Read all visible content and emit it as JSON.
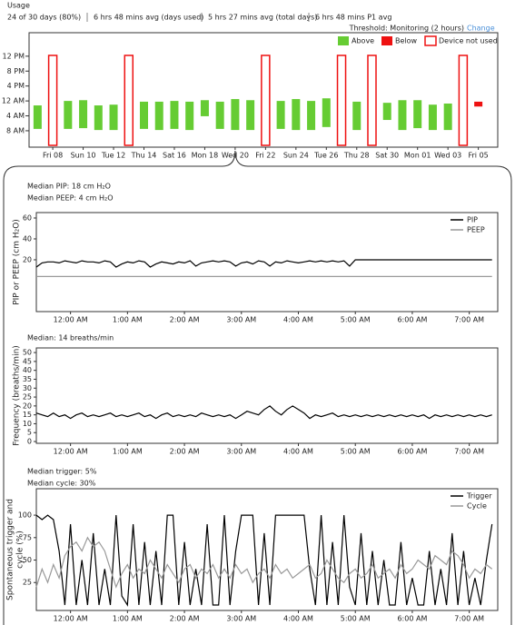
{
  "header": {
    "title": "Usage",
    "summary": [
      "24 of 30 days (80%)",
      "6 hrs 48 mins avg (days used)",
      "5 hrs 27 mins avg (total days)",
      "6 hrs 48 mins P1 avg"
    ],
    "threshold": "Threshold: Monitoring (2 hours)",
    "threshold_link": "Change"
  },
  "chart_data": [
    {
      "type": "range_bar",
      "categories": [
        null,
        "Fri 08",
        null,
        "Sun 10",
        null,
        "Tue 12",
        null,
        "Thu 14",
        null,
        "Sat 16",
        null,
        "Mon 18",
        null,
        "Wed 20",
        null,
        "Fri 22",
        null,
        "Sun 24",
        null,
        "Tue 26",
        null,
        "Thu 28",
        null,
        "Sat 30",
        null,
        "Mon 01",
        null,
        "Wed 03",
        null,
        "Fri 05"
      ],
      "start": [
        0.5,
        null,
        0.5,
        0.7,
        0.2,
        0.2,
        null,
        0.5,
        0.2,
        0.5,
        0.2,
        3.9,
        0.5,
        0.2,
        0.2,
        null,
        0.5,
        0.2,
        0.2,
        1.0,
        null,
        0.2,
        null,
        2.9,
        0.2,
        0.7,
        0.2,
        0.2,
        null,
        6.5
      ],
      "end": [
        6.8,
        null,
        8.0,
        8.2,
        6.8,
        7.0,
        null,
        7.8,
        7.8,
        8.0,
        7.8,
        8.2,
        7.8,
        8.5,
        8.2,
        null,
        8.0,
        8.5,
        8.0,
        8.7,
        null,
        7.8,
        null,
        7.5,
        8.2,
        8.2,
        7.0,
        7.3,
        null,
        7.8
      ],
      "status": [
        0,
        2,
        0,
        0,
        0,
        0,
        2,
        0,
        0,
        0,
        0,
        0,
        0,
        0,
        0,
        2,
        0,
        0,
        0,
        0,
        2,
        0,
        2,
        0,
        0,
        0,
        0,
        0,
        2,
        1
      ],
      "legend": [
        {
          "name": "Above",
          "color": "#66cc33",
          "style": "fill"
        },
        {
          "name": "Below",
          "color": "#ee1111",
          "style": "fill"
        },
        {
          "name": "Device not used",
          "color": "#ee1111",
          "style": "outline"
        }
      ],
      "selected": 13,
      "ylim": [
        -4.4,
        26.3
      ],
      "yticks": [
        {
          "value": 0,
          "label": "8 AM"
        },
        {
          "value": 4,
          "label": "4 AM"
        },
        {
          "value": 8,
          "label": "12 AM"
        },
        {
          "value": 12,
          "label": "4 PM"
        },
        {
          "value": 16,
          "label": "8 PM"
        },
        {
          "value": 20,
          "label": "12 PM"
        }
      ]
    },
    {
      "type": "line",
      "notes": [
        "Median PIP: 18 cm H₂O",
        "Median PEEP: 4 cm H₂O"
      ],
      "ylabel": "PIP or PEEP (cm H₂O)",
      "legend": "upper right",
      "x": [
        -0.6,
        -0.5,
        -0.4,
        -0.3,
        -0.2,
        -0.1,
        0.0,
        0.1,
        0.2,
        0.3,
        0.4,
        0.5,
        0.6,
        0.7,
        0.8,
        0.9,
        1.0,
        1.1,
        1.2,
        1.3,
        1.4,
        1.5,
        1.6,
        1.7,
        1.8,
        1.9,
        2.0,
        2.1,
        2.2,
        2.3,
        2.4,
        2.5,
        2.6,
        2.7,
        2.8,
        2.9,
        3.0,
        3.1,
        3.2,
        3.3,
        3.4,
        3.5,
        3.6,
        3.7,
        3.8,
        3.9,
        4.0,
        4.1,
        4.2,
        4.3,
        4.4,
        4.5,
        4.6,
        4.7,
        4.8,
        4.9,
        5.0,
        5.1,
        5.2,
        5.3,
        5.4,
        5.5,
        5.6,
        5.7,
        5.8,
        5.9,
        6.0,
        6.1,
        6.2,
        6.3,
        6.4,
        6.5,
        6.6,
        6.7,
        6.8,
        6.9,
        7.0,
        7.1,
        7.2,
        7.3,
        7.4
      ],
      "series": [
        {
          "name": "PIP",
          "color": "#000000",
          "values": [
            13,
            17,
            18,
            18,
            17,
            19,
            18,
            17,
            19,
            18,
            18,
            17,
            19,
            18,
            13,
            16,
            18,
            17,
            19,
            18,
            13,
            16,
            18,
            17,
            16,
            18,
            17,
            19,
            14,
            17,
            18,
            19,
            18,
            19,
            18,
            14,
            17,
            18,
            16,
            19,
            18,
            14,
            18,
            17,
            19,
            18,
            17,
            18,
            19,
            18,
            19,
            18,
            19,
            18,
            19,
            14,
            20,
            20,
            20,
            20,
            20,
            20,
            20,
            20,
            20,
            20,
            20,
            20,
            20,
            20,
            20,
            20,
            20,
            20,
            20,
            20,
            20,
            20,
            20,
            20,
            20
          ]
        },
        {
          "name": "PEEP",
          "color": "#999999",
          "values": [
            4,
            4,
            4,
            4,
            4,
            4,
            4,
            4,
            4,
            4,
            4,
            4,
            4,
            4,
            4,
            4,
            4,
            4,
            4,
            4,
            4,
            4,
            4,
            4,
            4,
            4,
            4,
            4,
            4,
            4,
            4,
            4,
            4,
            4,
            4,
            4,
            4,
            4,
            4,
            4,
            4,
            4,
            4,
            4,
            4,
            4,
            4,
            4,
            4,
            4,
            4,
            4,
            4,
            4,
            4,
            4,
            4,
            4,
            4,
            4,
            4,
            4,
            4,
            4,
            4,
            4,
            4,
            4,
            4,
            4,
            4,
            4,
            4,
            4,
            4,
            4,
            4,
            4,
            4,
            4,
            4
          ]
        }
      ],
      "xlim": [
        -0.6,
        7.5
      ],
      "xticks": [
        {
          "value": 0,
          "label": "12:00 AM"
        },
        {
          "value": 1,
          "label": "1:00 AM"
        },
        {
          "value": 2,
          "label": "2:00 AM"
        },
        {
          "value": 3,
          "label": "3:00 AM"
        },
        {
          "value": 4,
          "label": "4:00 AM"
        },
        {
          "value": 5,
          "label": "5:00 AM"
        },
        {
          "value": 6,
          "label": "6:00 AM"
        },
        {
          "value": 7,
          "label": "7:00 AM"
        }
      ],
      "ylim": [
        -29.6,
        65.2
      ],
      "yticks": [
        20,
        40,
        60
      ]
    },
    {
      "type": "line",
      "notes": [
        "Median: 14 breaths/min"
      ],
      "ylabel": "Frequency (breaths/min)",
      "color": "#000000",
      "x": [
        -0.6,
        -0.5,
        -0.4,
        -0.3,
        -0.2,
        -0.1,
        0.0,
        0.1,
        0.2,
        0.3,
        0.4,
        0.5,
        0.6,
        0.7,
        0.8,
        0.9,
        1.0,
        1.1,
        1.2,
        1.3,
        1.4,
        1.5,
        1.6,
        1.7,
        1.8,
        1.9,
        2.0,
        2.1,
        2.2,
        2.3,
        2.4,
        2.5,
        2.6,
        2.7,
        2.8,
        2.9,
        3.0,
        3.1,
        3.2,
        3.3,
        3.4,
        3.5,
        3.6,
        3.7,
        3.8,
        3.9,
        4.0,
        4.1,
        4.2,
        4.3,
        4.4,
        4.5,
        4.6,
        4.7,
        4.8,
        4.9,
        5.0,
        5.1,
        5.2,
        5.3,
        5.4,
        5.5,
        5.6,
        5.7,
        5.8,
        5.9,
        6.0,
        6.1,
        6.2,
        6.3,
        6.4,
        6.5,
        6.6,
        6.7,
        6.8,
        6.9,
        7.0,
        7.1,
        7.2,
        7.3,
        7.4
      ],
      "values": [
        16,
        15,
        14,
        16,
        14,
        15,
        13,
        15,
        16,
        14,
        15,
        14,
        15,
        16,
        14,
        15,
        14,
        15,
        16,
        14,
        15,
        13,
        15,
        16,
        14,
        15,
        14,
        15,
        14,
        16,
        15,
        14,
        15,
        14,
        15,
        13,
        15,
        17,
        16,
        15,
        18,
        20,
        17,
        15,
        18,
        20,
        18,
        16,
        13,
        15,
        14,
        15,
        16,
        14,
        15,
        14,
        15,
        14,
        15,
        14,
        15,
        14,
        15,
        14,
        15,
        14,
        15,
        14,
        15,
        13,
        15,
        14,
        15,
        14,
        15,
        14,
        15,
        14,
        15,
        14,
        15
      ],
      "xlim": [
        -0.6,
        7.5
      ],
      "xticks": [
        {
          "value": 0,
          "label": "12:00 AM"
        },
        {
          "value": 1,
          "label": "1:00 AM"
        },
        {
          "value": 2,
          "label": "2:00 AM"
        },
        {
          "value": 3,
          "label": "3:00 AM"
        },
        {
          "value": 4,
          "label": "4:00 AM"
        },
        {
          "value": 5,
          "label": "5:00 AM"
        },
        {
          "value": 6,
          "label": "6:00 AM"
        },
        {
          "value": 7,
          "label": "7:00 AM"
        }
      ],
      "ylim": [
        -1,
        52.6
      ],
      "yticks": [
        0,
        5,
        10,
        15,
        20,
        25,
        30,
        35,
        40,
        45,
        50
      ]
    },
    {
      "type": "line",
      "notes": [
        "Median trigger: 5%",
        "Median cycle: 30%"
      ],
      "ylabel": [
        "Spontaneous trigger and",
        "cycle (%)"
      ],
      "legend": "upper right",
      "x": [
        -0.6,
        -0.5,
        -0.4,
        -0.3,
        -0.2,
        -0.1,
        0.0,
        0.1,
        0.2,
        0.3,
        0.4,
        0.5,
        0.6,
        0.7,
        0.8,
        0.9,
        1.0,
        1.1,
        1.2,
        1.3,
        1.4,
        1.5,
        1.6,
        1.7,
        1.8,
        1.9,
        2.0,
        2.1,
        2.2,
        2.3,
        2.4,
        2.5,
        2.6,
        2.7,
        2.8,
        2.9,
        3.0,
        3.1,
        3.2,
        3.3,
        3.4,
        3.5,
        3.6,
        3.7,
        3.8,
        3.9,
        4.0,
        4.1,
        4.2,
        4.3,
        4.4,
        4.5,
        4.6,
        4.7,
        4.8,
        4.9,
        5.0,
        5.1,
        5.2,
        5.3,
        5.4,
        5.5,
        5.6,
        5.7,
        5.8,
        5.9,
        6.0,
        6.1,
        6.2,
        6.3,
        6.4,
        6.5,
        6.6,
        6.7,
        6.8,
        6.9,
        7.0,
        7.1,
        7.2,
        7.3,
        7.4
      ],
      "series": [
        {
          "name": "Trigger",
          "color": "#000000",
          "values": [
            100,
            95,
            100,
            95,
            60,
            0,
            90,
            0,
            50,
            0,
            80,
            0,
            40,
            0,
            100,
            10,
            0,
            90,
            0,
            70,
            0,
            60,
            0,
            100,
            100,
            0,
            70,
            0,
            40,
            0,
            90,
            0,
            0,
            100,
            0,
            60,
            100,
            100,
            100,
            0,
            80,
            0,
            100,
            100,
            100,
            100,
            100,
            100,
            40,
            0,
            100,
            0,
            70,
            0,
            100,
            20,
            0,
            80,
            0,
            60,
            0,
            50,
            0,
            0,
            70,
            0,
            30,
            0,
            0,
            60,
            0,
            40,
            0,
            80,
            0,
            60,
            0,
            30,
            0,
            50,
            90
          ]
        },
        {
          "name": "Cycle",
          "color": "#999999",
          "values": [
            20,
            40,
            25,
            45,
            30,
            55,
            65,
            70,
            60,
            75,
            65,
            70,
            60,
            40,
            20,
            35,
            45,
            30,
            40,
            35,
            50,
            40,
            30,
            45,
            35,
            25,
            40,
            45,
            30,
            40,
            35,
            45,
            30,
            40,
            30,
            45,
            35,
            40,
            25,
            35,
            40,
            30,
            45,
            35,
            40,
            30,
            35,
            40,
            45,
            30,
            35,
            50,
            40,
            30,
            25,
            35,
            40,
            30,
            35,
            45,
            30,
            35,
            40,
            30,
            45,
            35,
            40,
            50,
            45,
            40,
            55,
            50,
            45,
            60,
            55,
            45,
            30,
            40,
            35,
            45,
            40
          ]
        }
      ],
      "xlim": [
        -0.6,
        7.5
      ],
      "xticks": [
        {
          "value": 0,
          "label": "12:00 AM"
        },
        {
          "value": 1,
          "label": "1:00 AM"
        },
        {
          "value": 2,
          "label": "2:00 AM"
        },
        {
          "value": 3,
          "label": "3:00 AM"
        },
        {
          "value": 4,
          "label": "4:00 AM"
        },
        {
          "value": 5,
          "label": "5:00 AM"
        },
        {
          "value": 6,
          "label": "6:00 AM"
        },
        {
          "value": 7,
          "label": "7:00 AM"
        }
      ],
      "ylim": [
        -6.1,
        129.4
      ],
      "yticks": [
        25,
        50,
        75,
        100
      ]
    }
  ]
}
